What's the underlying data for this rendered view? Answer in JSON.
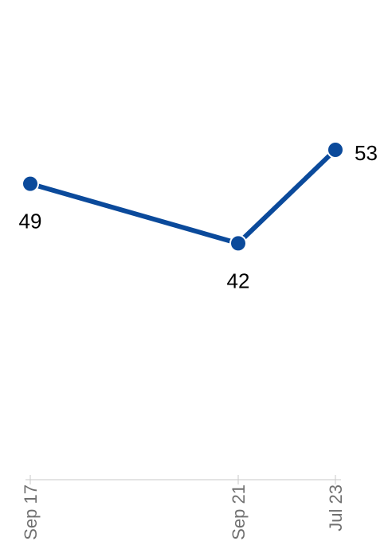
{
  "chart_data": {
    "type": "line",
    "categories": [
      "Sep 17",
      "Sep 21",
      "Jul 23"
    ],
    "series": [
      {
        "values": [
          49,
          42,
          53
        ]
      }
    ],
    "title": "",
    "xlabel": "",
    "ylabel": "",
    "ylim": [
      20,
      65
    ],
    "grid": false,
    "legend": "none",
    "data_labels": [
      "49",
      "42",
      "53"
    ],
    "colors": {
      "line": "#0B4A9B",
      "marker": "#0B4A9B",
      "axis": "#C8C8C8",
      "tick_label": "#707070",
      "data_label": "#000000"
    }
  }
}
